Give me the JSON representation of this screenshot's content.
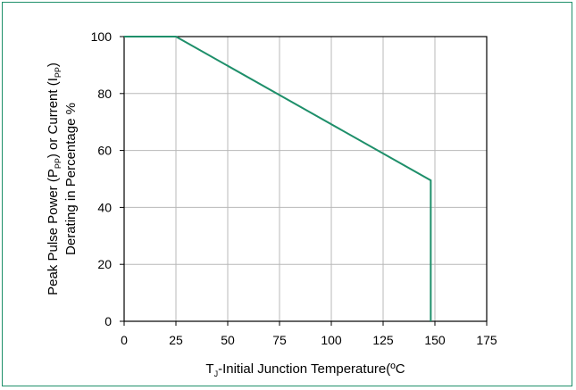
{
  "chart_data": {
    "type": "line",
    "title": "",
    "xlabel": {
      "prefix": "T",
      "sub": "J",
      "suffix": "-Initial Junction Temperature(ºC"
    },
    "ylabel_line1": {
      "text1": "Peak Pulse Power (P",
      "sub1": "PP",
      "text2": ") or Current (I",
      "sub2": "PP",
      "text3": ")"
    },
    "ylabel_line2": "Derating in Percentage %",
    "xlim": [
      0,
      175
    ],
    "ylim": [
      0,
      100
    ],
    "xticks": [
      0,
      25,
      50,
      75,
      100,
      125,
      150,
      175
    ],
    "yticks": [
      0,
      20,
      40,
      60,
      80,
      100
    ],
    "grid": true,
    "series": [
      {
        "color": "#1e8f6a",
        "x": [
          0,
          25,
          148,
          148
        ],
        "y": [
          100,
          100,
          49.5,
          0
        ]
      }
    ]
  },
  "colors": {
    "line": "#1e8f6a",
    "grid": "#b8b8b8",
    "frame": "#1e8f6a"
  }
}
